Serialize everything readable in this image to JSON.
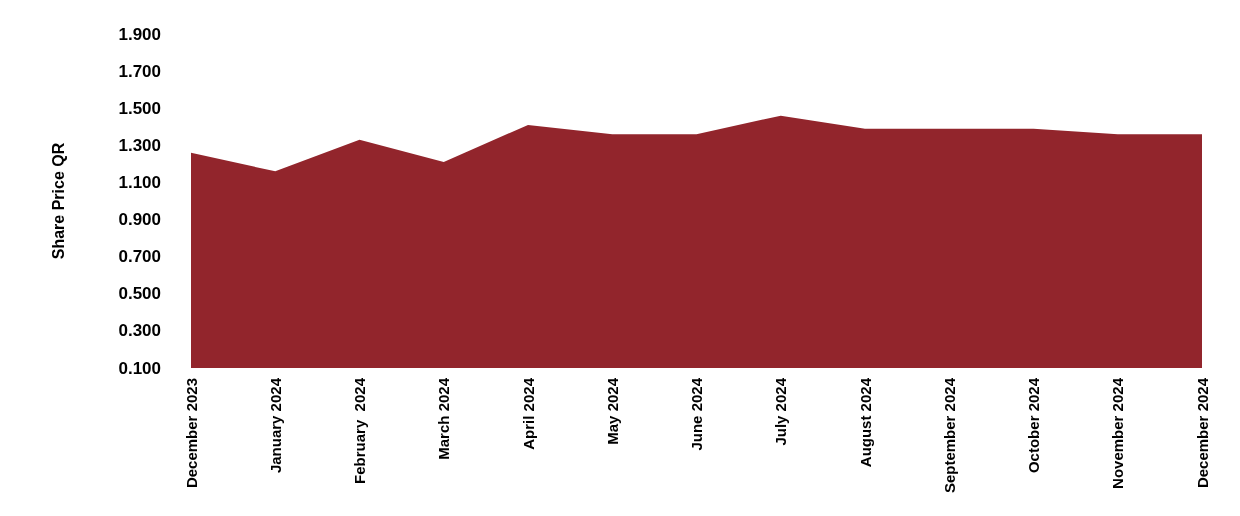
{
  "chart_data": {
    "type": "area",
    "ylabel": "Share Price QR",
    "categories": [
      "December 2023",
      "January 2024",
      "February  2024",
      "March 2024",
      "April 2024",
      "May 2024",
      "June 2024",
      "July 2024",
      "August 2024",
      "September 2024",
      "October 2024",
      "November 2024",
      "December 2024"
    ],
    "series": [
      {
        "color": "#92252c",
        "values": [
          1.26,
          1.16,
          1.33,
          1.21,
          1.41,
          1.36,
          1.36,
          1.46,
          1.39,
          1.39,
          1.39,
          1.36,
          1.36
        ]
      }
    ],
    "ylim": [
      0.1,
      1.9
    ],
    "yticks": [
      {
        "value": 0.1,
        "label": "0.100"
      },
      {
        "value": 0.3,
        "label": "0.300"
      },
      {
        "value": 0.5,
        "label": "0.500"
      },
      {
        "value": 0.7,
        "label": "0.700"
      },
      {
        "value": 0.9,
        "label": "0.900"
      },
      {
        "value": 1.1,
        "label": "1.100"
      },
      {
        "value": 1.3,
        "label": "1.300"
      },
      {
        "value": 1.5,
        "label": "1.500"
      },
      {
        "value": 1.7,
        "label": "1.700"
      },
      {
        "value": 1.9,
        "label": "1.900"
      }
    ],
    "grid": false
  }
}
